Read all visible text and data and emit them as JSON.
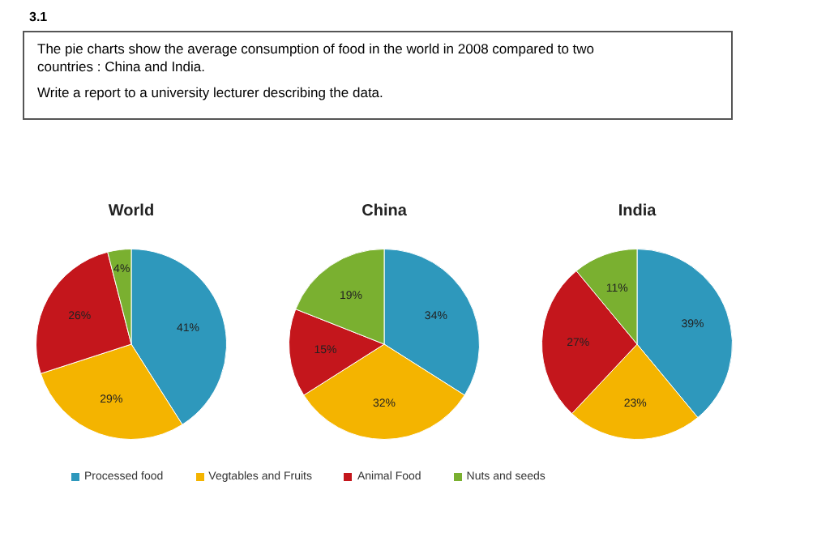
{
  "chart_data": [
    {
      "type": "pie",
      "title": "World",
      "categories": [
        "Processed food",
        "Vegtables and Fruits",
        "Animal Food",
        "Nuts and seeds"
      ],
      "values": [
        41,
        29,
        26,
        4
      ],
      "value_labels": [
        "41%",
        "29%",
        "26%",
        "4%"
      ],
      "colors": [
        "#2e98bc",
        "#f4b400",
        "#c4161c",
        "#7ab030"
      ],
      "legend": "bottom",
      "annotations": [
        "3.1",
        "The pie charts show the average consumption of food in the world in 2008 compared to two countries : China and India.",
        "Write a report to a university lecturer describing the data."
      ]
    },
    {
      "type": "pie",
      "title": "China",
      "categories": [
        null,
        null,
        null,
        null
      ],
      "values": [
        34,
        32,
        15,
        19
      ],
      "value_labels": [
        "34%",
        "32%",
        "15%",
        "19%"
      ],
      "colors": [
        "#2e98bc",
        "#f4b400",
        "#c4161c",
        "#7ab030"
      ]
    },
    {
      "type": "pie",
      "title": "India",
      "categories": [
        null,
        null,
        null,
        null
      ],
      "values": [
        39,
        23,
        27,
        11
      ],
      "value_labels": [
        "39%",
        "23%",
        "27%",
        "11%"
      ],
      "colors": [
        "#2e98bc",
        "#f4b400",
        "#c4161c",
        "#7ab030"
      ]
    }
  ]
}
